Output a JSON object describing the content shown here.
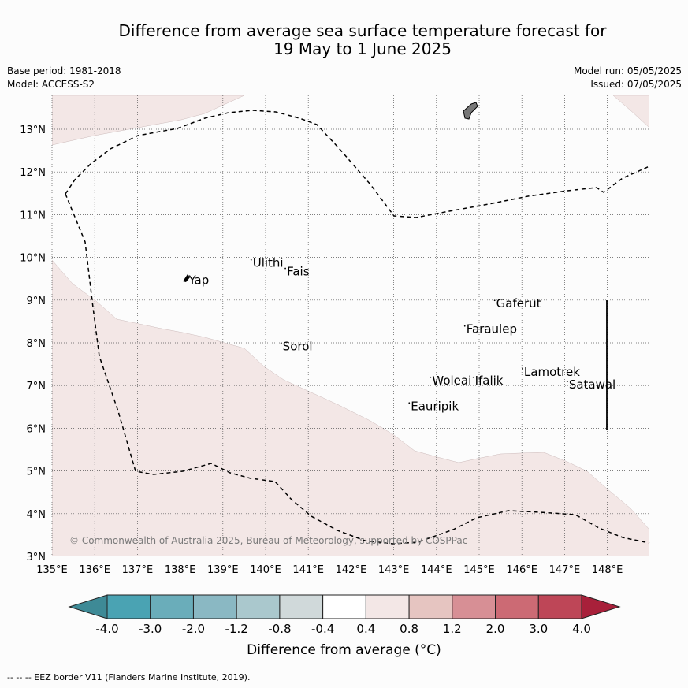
{
  "title": {
    "line1": "Difference from average sea surface temperature forecast for",
    "line2": "19 May to 1 June 2025"
  },
  "meta": {
    "base_period": "Base period: 1981-2018",
    "model": "Model: ACCESS-S2",
    "model_run": "Model run: 05/05/2025",
    "issued": "Issued: 07/05/2025"
  },
  "map": {
    "lon_ticks": [
      "135°E",
      "136°E",
      "137°E",
      "138°E",
      "139°E",
      "140°E",
      "141°E",
      "142°E",
      "143°E",
      "144°E",
      "145°E",
      "146°E",
      "147°E",
      "148°E"
    ],
    "lat_ticks": [
      "3°N",
      "4°N",
      "5°N",
      "6°N",
      "7°N",
      "8°N",
      "9°N",
      "10°N",
      "11°N",
      "12°N",
      "13°N"
    ],
    "places": [
      {
        "name": "Yap",
        "lon": 138.2,
        "lat": 9.45
      },
      {
        "name": "Ulithi",
        "lon": 139.7,
        "lat": 9.85
      },
      {
        "name": "Fais",
        "lon": 140.5,
        "lat": 9.65
      },
      {
        "name": "Sorol",
        "lon": 140.4,
        "lat": 7.9
      },
      {
        "name": "Gaferut",
        "lon": 145.4,
        "lat": 8.9
      },
      {
        "name": "Faraulep",
        "lon": 144.7,
        "lat": 8.3
      },
      {
        "name": "Woleai",
        "lon": 143.9,
        "lat": 7.1
      },
      {
        "name": "Ifalik",
        "lon": 144.9,
        "lat": 7.1
      },
      {
        "name": "Lamotrek",
        "lon": 146.05,
        "lat": 7.3
      },
      {
        "name": "Satawal",
        "lon": 147.1,
        "lat": 7.0
      },
      {
        "name": "Eauripik",
        "lon": 143.4,
        "lat": 6.5
      }
    ],
    "copyright": "© Commonwealth of Australia 2025, Bureau of Meteorology, supported by COSPPac"
  },
  "colorbar": {
    "ticks": [
      "-4.0",
      "-3.0",
      "-2.0",
      "-1.2",
      "-0.8",
      "-0.4",
      "0.4",
      "0.8",
      "1.2",
      "2.0",
      "3.0",
      "4.0"
    ],
    "colors": [
      "#3e8a96",
      "#4aa3b3",
      "#6aadba",
      "#8ab8c3",
      "#aac8cd",
      "#d0d9da",
      "#ffffff",
      "#f3e7e6",
      "#e6c5c1",
      "#d78f95",
      "#cc6a74",
      "#be4657",
      "#a8203a"
    ],
    "label": "Difference from average (°C)"
  },
  "footnote": "--  --  -- EEZ border V11 (Flanders Marine Institute, 2019)."
}
